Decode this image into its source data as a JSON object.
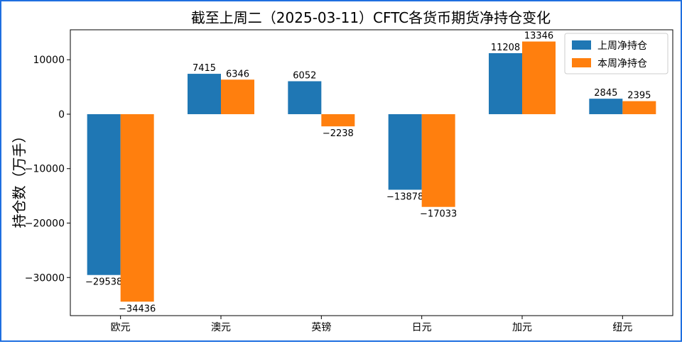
{
  "chart_data": {
    "type": "bar",
    "title": "截至上周二（2025-03-11）CFTC各货币期货净持仓变化",
    "xlabel": "",
    "ylabel": "持仓数（万手）",
    "categories": [
      "欧元",
      "澳元",
      "英镑",
      "日元",
      "加元",
      "纽元"
    ],
    "series": [
      {
        "name": "上周净持仓",
        "color": "#1f77b4",
        "values": [
          -29538,
          7415,
          6052,
          -13878,
          11208,
          2845
        ]
      },
      {
        "name": "本周净持仓",
        "color": "#ff7f0e",
        "values": [
          -34436,
          6346,
          -2238,
          -17033,
          13346,
          2395
        ]
      }
    ],
    "ylim": [
      -37000,
      15500
    ],
    "yticks": [
      10000,
      0,
      -10000,
      -20000,
      -30000
    ],
    "ytick_labels": [
      "10000",
      "0",
      "−10000",
      "−20000",
      "−30000"
    ],
    "legend_position": "top-right",
    "grid": false
  }
}
